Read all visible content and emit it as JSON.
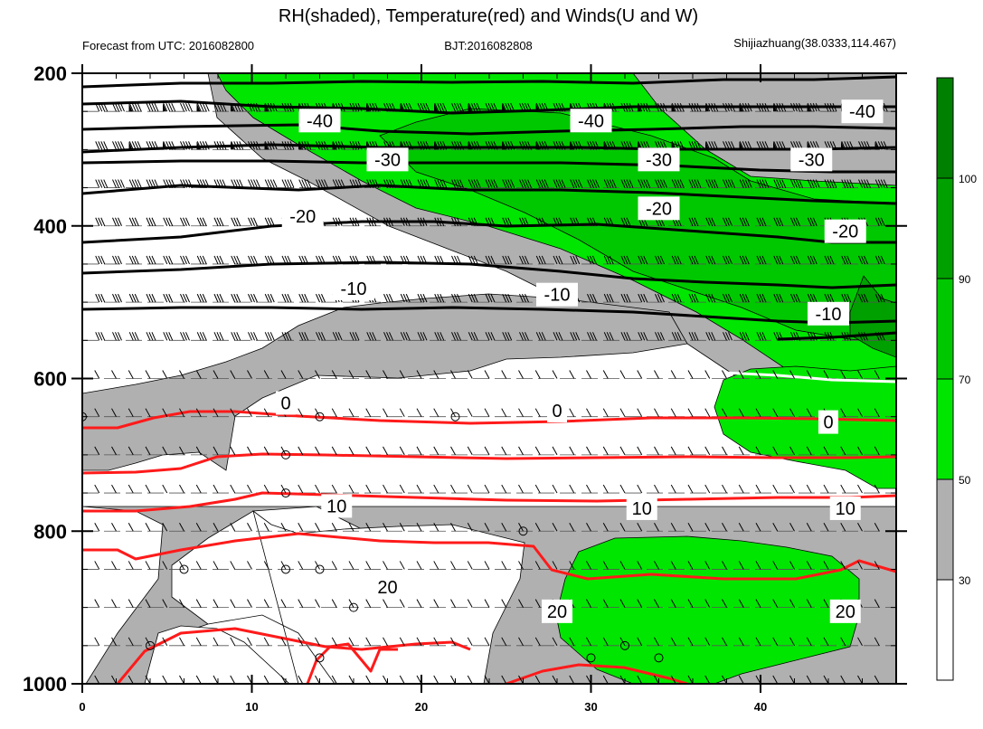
{
  "title": "RH(shaded), Temperature(red) and Winds(U and W)",
  "left_subtitle": "Forecast from UTC: 2016082800",
  "center_subtitle": "BJT:2016082808",
  "right_subtitle": "Shijiazhuang(38.0333,114.467)",
  "colors": {
    "rh_lt30": "#ffffff",
    "rh_30_50": "#b0b0b0",
    "rh_50_70": "#00e600",
    "rh_70_90": "#00c800",
    "rh_90_100": "#00a000",
    "rh_gt100": "#008000",
    "temp_warm": "#ff1a1a",
    "temp_cold": "#000000",
    "temp_zero": "#ffffff"
  },
  "chart_data": {
    "type": "time-pressure cross-section",
    "x_ticks": [
      0,
      10,
      20,
      30,
      40
    ],
    "xlim": [
      0,
      48
    ],
    "y_ticks": [
      200,
      400,
      600,
      800,
      1000
    ],
    "ylim": [
      1000,
      200
    ],
    "y_minor_levels": [
      200,
      250,
      300,
      350,
      400,
      450,
      500,
      550,
      600,
      650,
      700,
      750,
      800,
      850,
      900,
      950,
      1000
    ],
    "colorbar": {
      "labels": [
        "30",
        "50",
        "70",
        "90",
        "100"
      ],
      "colors": [
        "#ffffff",
        "#b0b0b0",
        "#00e600",
        "#00c800",
        "#00a000",
        "#008000"
      ]
    },
    "temperature_labels": [
      {
        "text": "-40",
        "x": 14,
        "p": 262
      },
      {
        "text": "-40",
        "x": 30,
        "p": 262
      },
      {
        "text": "-40",
        "x": 46,
        "p": 250
      },
      {
        "text": "-30",
        "x": 18,
        "p": 313
      },
      {
        "text": "-30",
        "x": 34,
        "p": 313
      },
      {
        "text": "-30",
        "x": 43,
        "p": 313
      },
      {
        "text": "-20",
        "x": 13,
        "p": 387
      },
      {
        "text": "-20",
        "x": 34,
        "p": 377
      },
      {
        "text": "-20",
        "x": 45,
        "p": 407
      },
      {
        "text": "-10",
        "x": 16,
        "p": 482
      },
      {
        "text": "-10",
        "x": 28,
        "p": 490
      },
      {
        "text": "-10",
        "x": 44,
        "p": 515
      },
      {
        "text": "0",
        "x": 12,
        "p": 632
      },
      {
        "text": "0",
        "x": 28,
        "p": 642
      },
      {
        "text": "0",
        "x": 44,
        "p": 657
      },
      {
        "text": "10",
        "x": 15,
        "p": 767
      },
      {
        "text": "10",
        "x": 33,
        "p": 770
      },
      {
        "text": "10",
        "x": 45,
        "p": 770
      },
      {
        "text": "20",
        "x": 18,
        "p": 873
      },
      {
        "text": "20",
        "x": 28,
        "p": 905
      },
      {
        "text": "20",
        "x": 45,
        "p": 905
      }
    ]
  }
}
